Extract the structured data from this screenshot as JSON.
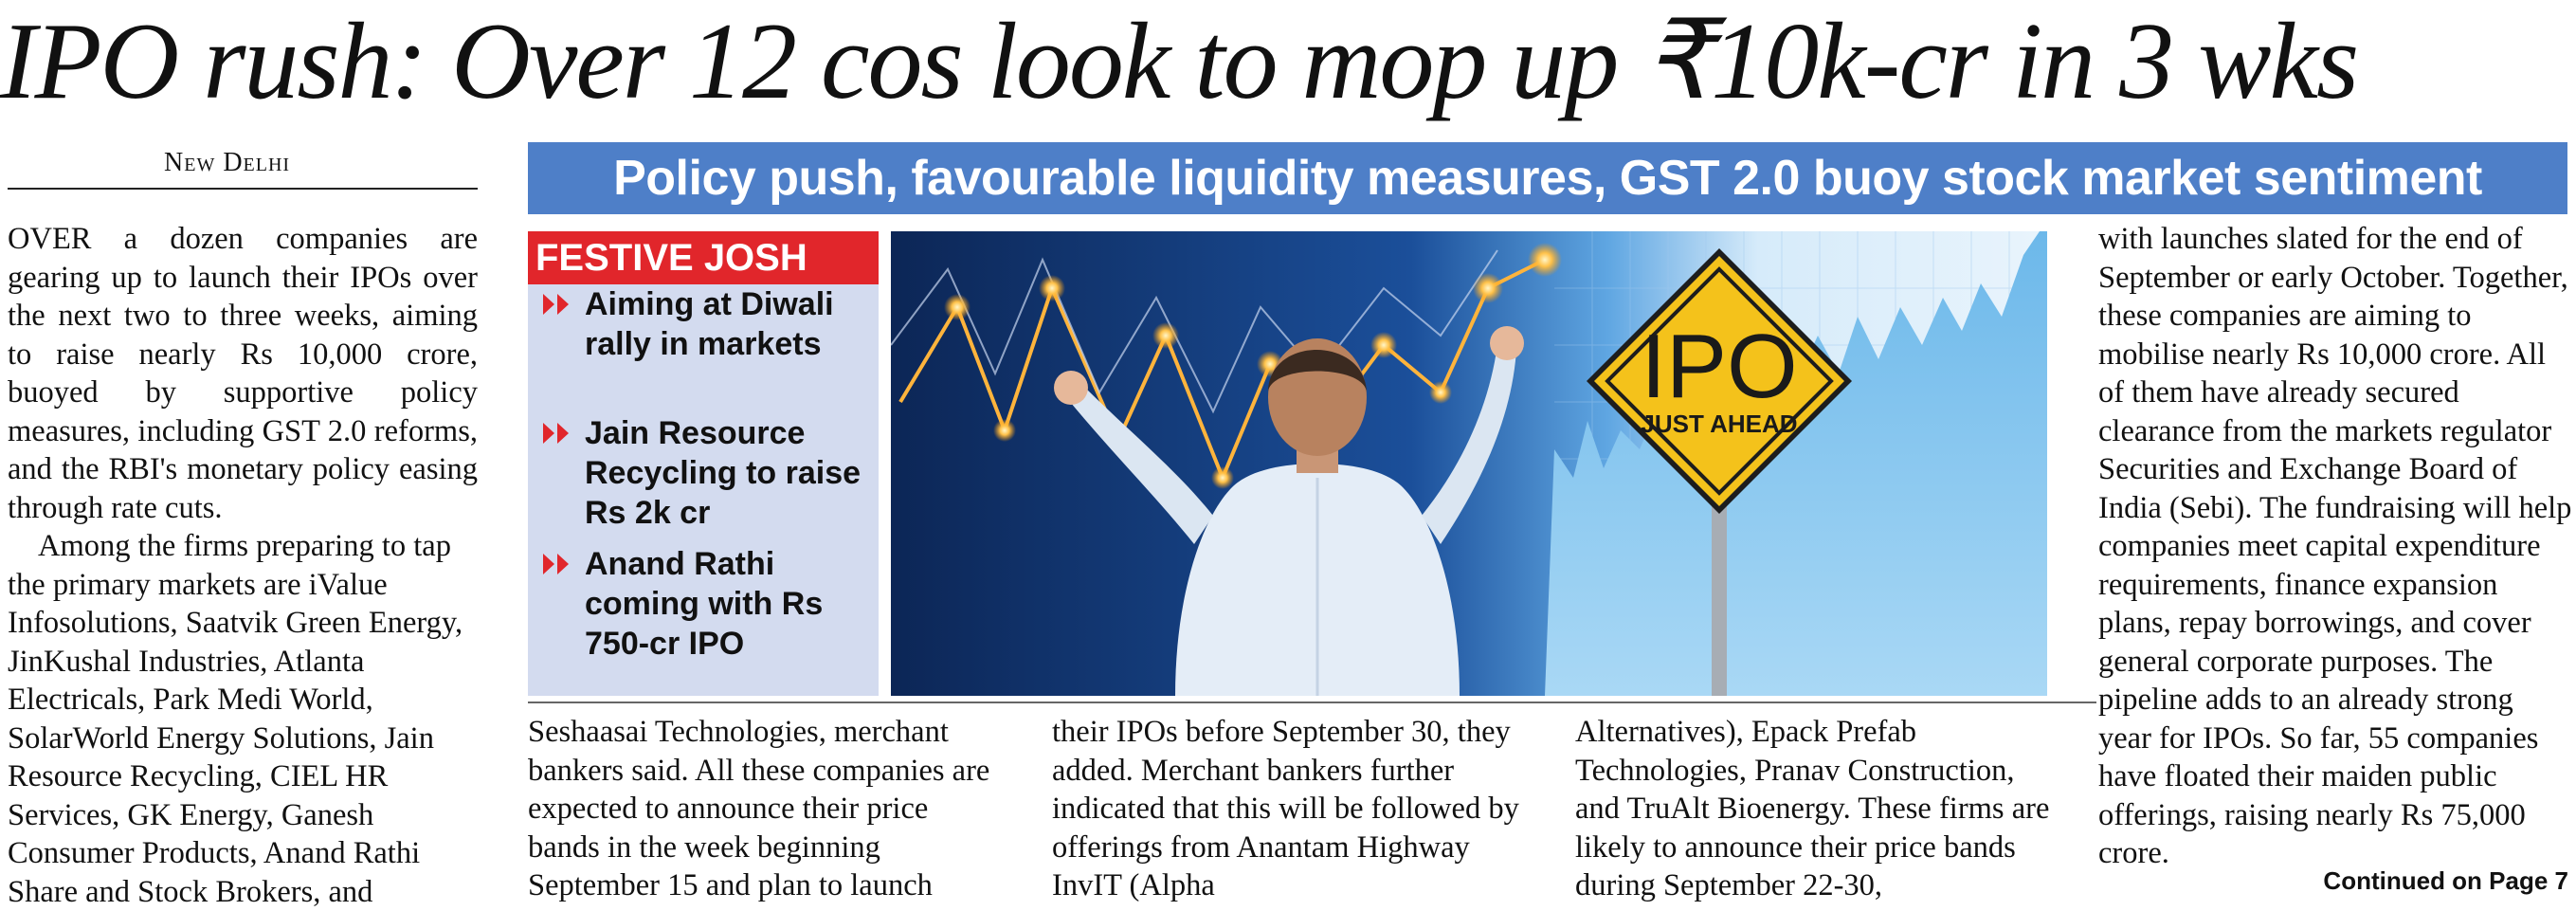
{
  "headline": "IPO rush: Over 12 cos look to mop up ₹10k-cr in 3 wks",
  "dateline": "New Delhi",
  "banner": "Policy push, favourable liquidity measures, GST 2.0 buoy stock market sentiment",
  "column1": {
    "para1": "OVER a dozen companies are gearing up to launch their IPOs over the next two to three weeks, aiming to raise nearly Rs 10,000 crore, buoyed by supportive policy measures, including GST 2.0 reforms, and the RBI's monetary policy easing through rate cuts.",
    "para2": "Among the firms preparing to tap the primary markets are iValue Infosolutions, Saatvik Green Energy, JinKushal Industries, Atlanta Electricals, Park Medi World, SolarWorld Energy Solutions, Jain Resource Recycling, CIEL HR Services, GK Energy, Ganesh Consumer Products, Anand Rathi Share and Stock Brokers, and"
  },
  "factbox": {
    "heading": "FESTIVE JOSH",
    "items": [
      "Aiming at Diwali rally in markets",
      "Jain Resource Recycling to raise Rs 2k cr",
      "Anand Rathi coming with Rs 750-cr IPO"
    ]
  },
  "photo": {
    "sign_title": "IPO",
    "sign_subtitle": "JUST AHEAD"
  },
  "column2": "Seshaasai Technologies, merchant bankers said. All these companies are expected to announce their price bands in the week beginning September 15 and plan to launch",
  "column3": "their IPOs before September 30, they added. Merchant bankers further indicated that this will be followed by offerings from Anantam Highway InvIT (Alpha",
  "column4": "Alternatives), Epack Prefab Technologies, Pranav Construction, and TruAlt Bioenergy.  These firms are likely to announce their price bands during September 22-30,",
  "column5": "with launches slated for the end of September or early October. Together, these companies are aiming to mobilise nearly Rs 10,000 crore. All of them have already secured clearance from the markets regulator Securities and Exchange Board of India (Sebi).  The fundraising will help companies meet capital expenditure requirements, finance expansion plans, repay borrowings, and cover general corporate purposes. The pipeline adds to an already strong year for IPOs. So far, 55 companies have floated their maiden public offerings, raising nearly Rs 75,000 crore.",
  "continued": "Continued on Page 7",
  "colors": {
    "banner": "#4e7fc8",
    "factbox_heading": "#e1262b",
    "factbox_bg": "#d3dbef",
    "arrow": "#e1262b",
    "sign": "#f4c21b"
  }
}
